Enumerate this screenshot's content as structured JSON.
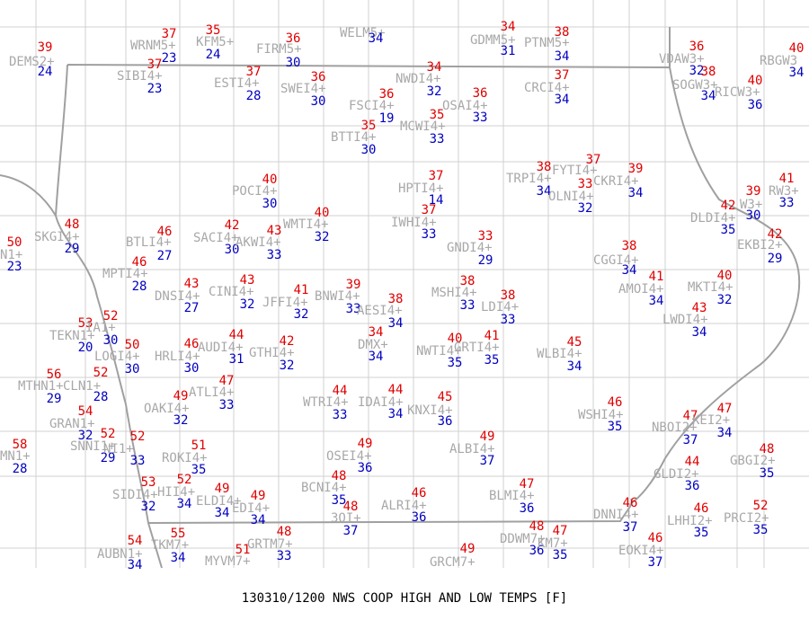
{
  "title": "130310/1200 NWS COOP HIGH AND LOW TEMPS [F]",
  "stations": [
    {
      "id": "DEMS2+",
      "high": 39,
      "low": 24
    },
    {
      "id": "WRNM5+",
      "high": 37,
      "low": 23
    },
    {
      "id": "KFM5+",
      "high": 35,
      "low": 24
    },
    {
      "id": "FIRM5+",
      "high": 36,
      "low": 30
    },
    {
      "id": "WELM5+",
      "low": 34
    },
    {
      "id": "GDMM5+",
      "high": 34,
      "low": 31
    },
    {
      "id": "PTNM5+",
      "high": 38,
      "low": 34
    },
    {
      "id": "VDAW3+",
      "high": 36,
      "low": 32
    },
    {
      "id": "RBGW3",
      "high": 40,
      "low": 34
    },
    {
      "id": "SOGW3+",
      "high": 38,
      "low": 34
    },
    {
      "id": "RICW3+",
      "high": 40,
      "low": 36
    },
    {
      "id": "SIBI4+",
      "high": 37,
      "low": 23
    },
    {
      "id": "ESTI4+",
      "high": 37,
      "low": 28
    },
    {
      "id": "SWEI4+",
      "high": 36,
      "low": 30
    },
    {
      "id": "NWDI4+",
      "high": 34,
      "low": 32
    },
    {
      "id": "OSAI4+",
      "high": 36,
      "low": 33
    },
    {
      "id": "CRCI4+",
      "high": 37,
      "low": 34
    },
    {
      "id": "FSCI4+",
      "high": 36,
      "low": 19
    },
    {
      "id": "MCWI4+",
      "high": 35,
      "low": 33
    },
    {
      "id": "BTTI4+",
      "high": 35,
      "low": 30
    },
    {
      "id": "TRPI4+",
      "high": 38,
      "low": 34
    },
    {
      "id": "FYTI4+",
      "high": 37
    },
    {
      "id": "OLNI4+",
      "high": 33,
      "low": 32
    },
    {
      "id": "CKRI4+",
      "high": 39,
      "low": 34
    },
    {
      "id": "HPTI4+",
      "high": 37,
      "low": 14
    },
    {
      "id": "POCI4+",
      "high": 40,
      "low": 30
    },
    {
      "id": "IWHI4+",
      "high": 37,
      "low": 33
    },
    {
      "id": "WMTI4+",
      "high": 40,
      "low": 32
    },
    {
      "id": "GNDI4+",
      "high": 33,
      "low": 29
    },
    {
      "id": "SACI4+",
      "high": 42,
      "low": 30
    },
    {
      "id": "AKWI4+",
      "high": 43,
      "low": 33
    },
    {
      "id": "BTLI4+",
      "high": 46,
      "low": 27
    },
    {
      "id": "SKGI4+",
      "high": 48,
      "low": 29
    },
    {
      "id": "N1+",
      "high": 50,
      "low": 23
    },
    {
      "id": "MPTI4+",
      "high": 46,
      "low": 28
    },
    {
      "id": "DLDI4+",
      "high": 42,
      "low": 35
    },
    {
      "id": "RW3+",
      "high": 41,
      "low": 33
    },
    {
      "id": "W3+",
      "high": 39,
      "low": 30
    },
    {
      "id": "EKBI2+",
      "high": 42,
      "low": 29
    },
    {
      "id": "CGGI4+",
      "high": 38,
      "low": 34
    },
    {
      "id": "AMOI4+",
      "high": 41,
      "low": 34
    },
    {
      "id": "MKTI4+",
      "high": 40,
      "low": 32
    },
    {
      "id": "LWDI4+",
      "high": 43,
      "low": 34
    },
    {
      "id": "DNSI4+",
      "high": 43,
      "low": 27
    },
    {
      "id": "CINI4+",
      "high": 43,
      "low": 32
    },
    {
      "id": "JFFI4+",
      "high": 41,
      "low": 32
    },
    {
      "id": "BNWI4+",
      "high": 39,
      "low": 33
    },
    {
      "id": "AESI4+",
      "high": 38,
      "low": 34
    },
    {
      "id": "MSHI4+",
      "high": 38,
      "low": 33
    },
    {
      "id": "LDI4+",
      "high": 38,
      "low": 33
    },
    {
      "id": "TEKN1+",
      "high": 53,
      "low": 20
    },
    {
      "id": "IA1+",
      "high": 52,
      "low": 30
    },
    {
      "id": "LOGI4+",
      "high": 50,
      "low": 30
    },
    {
      "id": "HRLI4+",
      "high": 46,
      "low": 30
    },
    {
      "id": "AUDI4+",
      "high": 44,
      "low": 31
    },
    {
      "id": "GTHI4+",
      "high": 42,
      "low": 32
    },
    {
      "id": "DMX+",
      "high": 34,
      "low": 34
    },
    {
      "id": "NWTI4+",
      "high": 40,
      "low": 35
    },
    {
      "id": "GRTI4+",
      "high": 41,
      "low": 35
    },
    {
      "id": "WLBI4+",
      "high": 45,
      "low": 34
    },
    {
      "id": "MTHN1+",
      "high": 56,
      "low": 29
    },
    {
      "id": "CLN1+",
      "high": 52,
      "low": 28
    },
    {
      "id": "ATLI4+",
      "high": 47,
      "low": 33
    },
    {
      "id": "OAKI4+",
      "high": 49,
      "low": 32
    },
    {
      "id": "WTRI4+",
      "high": 44,
      "low": 33
    },
    {
      "id": "IDAI4+",
      "high": 44,
      "low": 34
    },
    {
      "id": "KNXI4+",
      "high": 45,
      "low": 36
    },
    {
      "id": "WSHI4+",
      "high": 46,
      "low": 35
    },
    {
      "id": "NBOI2+",
      "high": 47,
      "low": 37
    },
    {
      "id": "KEI2+",
      "high": 47,
      "low": 34
    },
    {
      "id": "GRAN1+",
      "high": 54,
      "low": 32
    },
    {
      "id": "SNNI1+",
      "high": 52,
      "low": 29
    },
    {
      "id": "NI1+",
      "high": 52,
      "low": 33
    },
    {
      "id": "MN1+",
      "high": 58,
      "low": 28
    },
    {
      "id": "ALBI4+",
      "high": 49,
      "low": 37
    },
    {
      "id": "ROKI4+",
      "high": 51,
      "low": 35
    },
    {
      "id": "OSEI4+",
      "high": 49,
      "low": 36
    },
    {
      "id": "GLDI2+",
      "high": 44,
      "low": 36
    },
    {
      "id": "GBGI2+",
      "high": 48,
      "low": 35
    },
    {
      "id": "SIDI4+",
      "high": 53,
      "low": 32
    },
    {
      "id": "HII4+",
      "high": 52,
      "low": 34
    },
    {
      "id": "ELDI4+",
      "high": 49,
      "low": 34
    },
    {
      "id": "EDI4+",
      "high": 49,
      "low": 34
    },
    {
      "id": "BCNI4+",
      "high": 48,
      "low": 35
    },
    {
      "id": "3OI+",
      "high": 48,
      "low": 37
    },
    {
      "id": "ALRI4+",
      "high": 46,
      "low": 36
    },
    {
      "id": "BLMI4+",
      "high": 47,
      "low": 36
    },
    {
      "id": "DNNI4+",
      "high": 46,
      "low": 37
    },
    {
      "id": "LHHI2+",
      "high": 46,
      "low": 35
    },
    {
      "id": "PRCI2+",
      "high": 52,
      "low": 35
    },
    {
      "id": "EOKI4+",
      "high": 46,
      "low": 37
    },
    {
      "id": "DDWM7+",
      "high": 48,
      "low": 36
    },
    {
      "id": "KM7+",
      "high": 47,
      "low": 35
    },
    {
      "id": "GRCM7+",
      "high": 49
    },
    {
      "id": "GRTM7+",
      "high": 48,
      "low": 33
    },
    {
      "id": "TKM7+",
      "high": 55,
      "low": 34
    },
    {
      "id": "AUBN1+",
      "high": 54,
      "low": 34
    },
    {
      "id": "MYVM7+",
      "high": 51
    }
  ]
}
